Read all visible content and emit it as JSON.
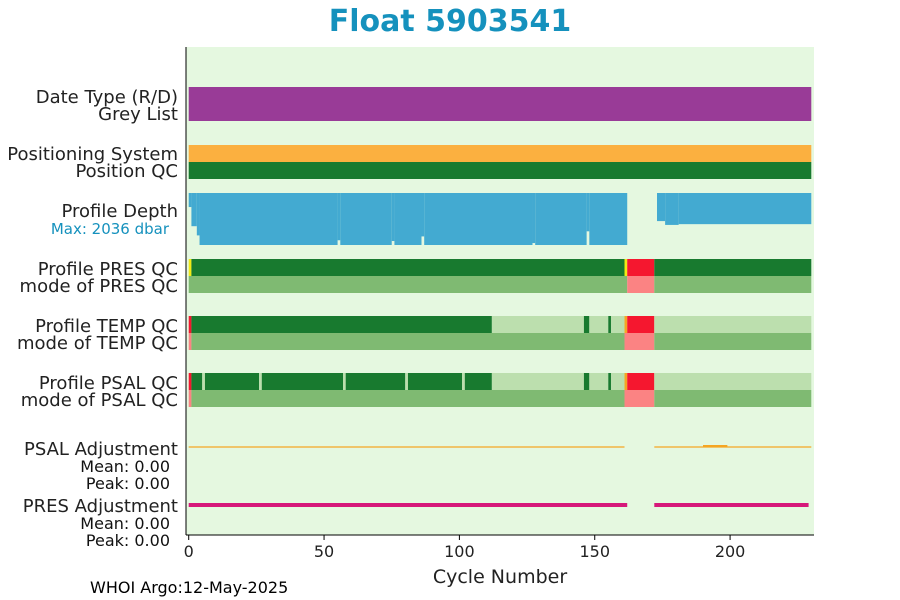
{
  "chart_data": {
    "type": "status-timeline",
    "title": "Float 5903541",
    "xlabel": "Cycle Number",
    "xlim": [
      -1,
      231
    ],
    "xticks": [
      0,
      50,
      100,
      150,
      200
    ],
    "grid": false,
    "background_color": "#e5f8e0",
    "row_labels": {
      "date_type": "Date Type (R/D)",
      "grey_list": "Grey List",
      "positioning_system": "Positioning System",
      "position_qc": "Position QC",
      "profile_depth": "Profile Depth",
      "max_depth": "Max: 2036 dbar",
      "profile_pres_qc": "Profile PRES QC",
      "mode_pres_qc": "mode of PRES QC",
      "profile_temp_qc": "Profile TEMP QC",
      "mode_temp_qc": "mode of TEMP QC",
      "profile_psal_qc": "Profile PSAL QC",
      "mode_psal_qc": "mode of PSAL QC",
      "psal_adjustment": "PSAL Adjustment",
      "psal_mean": "Mean: 0.00",
      "psal_peak": "Peak: 0.00",
      "pres_adjustment": "PRES Adjustment",
      "pres_mean": "Mean: 0.00",
      "pres_peak": "Peak: 0.00"
    },
    "colors": {
      "date_type": "#993b97",
      "positioning_system": "#fbb040",
      "qc_good": "#187a2f",
      "qc_light": "#bcdfae",
      "qc_mode_good": "#7fba72",
      "qc_bad": "#f5172f",
      "qc_mode_bad": "#fb8383",
      "qc_yellow": "#f2ea14",
      "qc_orange": "#f5a623",
      "depth": "#43aad1",
      "psal_adjustment": "#f5a623",
      "pres_adjustment": "#d6197a"
    },
    "cycle_range": [
      0,
      230
    ],
    "max_depth_dbar": 2036,
    "depth_profile": [
      {
        "from": 0,
        "to": 1,
        "depth": 550
      },
      {
        "from": 1,
        "to": 3,
        "depth": 1300
      },
      {
        "from": 3,
        "to": 4,
        "depth": 1660
      },
      {
        "from": 4,
        "to": 55,
        "depth": 2036
      },
      {
        "from": 55,
        "to": 56,
        "depth": 1850
      },
      {
        "from": 56,
        "to": 75,
        "depth": 2036
      },
      {
        "from": 75,
        "to": 76,
        "depth": 1880
      },
      {
        "from": 76,
        "to": 86,
        "depth": 2036
      },
      {
        "from": 86,
        "to": 87,
        "depth": 1700
      },
      {
        "from": 87,
        "to": 127,
        "depth": 2036
      },
      {
        "from": 127,
        "to": 128,
        "depth": 1960
      },
      {
        "from": 128,
        "to": 147,
        "depth": 2036
      },
      {
        "from": 147,
        "to": 148,
        "depth": 1500
      },
      {
        "from": 148,
        "to": 162,
        "depth": 2036
      },
      {
        "from": 162,
        "to": 173,
        "depth": 0
      },
      {
        "from": 173,
        "to": 176,
        "depth": 1100
      },
      {
        "from": 176,
        "to": 181,
        "depth": 1250
      },
      {
        "from": 181,
        "to": 230,
        "depth": 1220
      }
    ],
    "pres_qc": [
      {
        "from": 0,
        "to": 1,
        "color": "qc_yellow"
      },
      {
        "from": 1,
        "to": 161,
        "color": "qc_good"
      },
      {
        "from": 161,
        "to": 162,
        "color": "qc_yellow"
      },
      {
        "from": 162,
        "to": 172,
        "color": "qc_bad"
      },
      {
        "from": 172,
        "to": 230,
        "color": "qc_good"
      }
    ],
    "mode_pres_qc": [
      {
        "from": 0,
        "to": 162,
        "color": "qc_mode_good"
      },
      {
        "from": 162,
        "to": 172,
        "color": "qc_mode_bad"
      },
      {
        "from": 172,
        "to": 230,
        "color": "qc_mode_good"
      }
    ],
    "temp_qc": [
      {
        "from": 0,
        "to": 1,
        "color": "qc_bad"
      },
      {
        "from": 1,
        "to": 112,
        "color": "qc_good"
      },
      {
        "from": 112,
        "to": 146,
        "color": "qc_light"
      },
      {
        "from": 146,
        "to": 148,
        "color": "qc_good"
      },
      {
        "from": 148,
        "to": 155,
        "color": "qc_light"
      },
      {
        "from": 155,
        "to": 156,
        "color": "qc_good"
      },
      {
        "from": 156,
        "to": 161,
        "color": "qc_light"
      },
      {
        "from": 161,
        "to": 162,
        "color": "qc_orange"
      },
      {
        "from": 162,
        "to": 172,
        "color": "qc_bad"
      },
      {
        "from": 172,
        "to": 230,
        "color": "qc_light"
      }
    ],
    "mode_temp_qc": [
      {
        "from": 0,
        "to": 1,
        "color": "qc_mode_bad"
      },
      {
        "from": 1,
        "to": 161,
        "color": "qc_mode_good"
      },
      {
        "from": 161,
        "to": 172,
        "color": "qc_mode_bad"
      },
      {
        "from": 172,
        "to": 230,
        "color": "qc_mode_good"
      }
    ],
    "psal_qc": [
      {
        "from": 0,
        "to": 1,
        "color": "qc_bad"
      },
      {
        "from": 1,
        "to": 5,
        "color": "qc_good"
      },
      {
        "from": 5,
        "to": 6,
        "color": "qc_light"
      },
      {
        "from": 6,
        "to": 26,
        "color": "qc_good"
      },
      {
        "from": 26,
        "to": 27,
        "color": "qc_light"
      },
      {
        "from": 27,
        "to": 57,
        "color": "qc_good"
      },
      {
        "from": 57,
        "to": 58,
        "color": "qc_light"
      },
      {
        "from": 58,
        "to": 80,
        "color": "qc_good"
      },
      {
        "from": 80,
        "to": 81,
        "color": "qc_light"
      },
      {
        "from": 81,
        "to": 101,
        "color": "qc_good"
      },
      {
        "from": 101,
        "to": 102,
        "color": "qc_light"
      },
      {
        "from": 102,
        "to": 112,
        "color": "qc_good"
      },
      {
        "from": 112,
        "to": 146,
        "color": "qc_light"
      },
      {
        "from": 146,
        "to": 148,
        "color": "qc_good"
      },
      {
        "from": 148,
        "to": 155,
        "color": "qc_light"
      },
      {
        "from": 155,
        "to": 156,
        "color": "qc_good"
      },
      {
        "from": 156,
        "to": 161,
        "color": "qc_light"
      },
      {
        "from": 161,
        "to": 162,
        "color": "qc_orange"
      },
      {
        "from": 162,
        "to": 172,
        "color": "qc_bad"
      },
      {
        "from": 172,
        "to": 230,
        "color": "qc_light"
      }
    ],
    "mode_psal_qc": [
      {
        "from": 0,
        "to": 1,
        "color": "qc_mode_bad"
      },
      {
        "from": 1,
        "to": 161,
        "color": "qc_mode_good"
      },
      {
        "from": 161,
        "to": 172,
        "color": "qc_mode_bad"
      },
      {
        "from": 172,
        "to": 230,
        "color": "qc_mode_good"
      }
    ],
    "psal_adjustment_segments": [
      {
        "from": 0,
        "to": 161
      },
      {
        "from": 172,
        "to": 230
      }
    ],
    "psal_adjustment_bump": {
      "from": 190,
      "to": 199
    },
    "pres_adjustment_segments": [
      {
        "from": 0,
        "to": 162
      },
      {
        "from": 172,
        "to": 229
      }
    ]
  },
  "footer": "WHOI Argo:12-May-2025"
}
